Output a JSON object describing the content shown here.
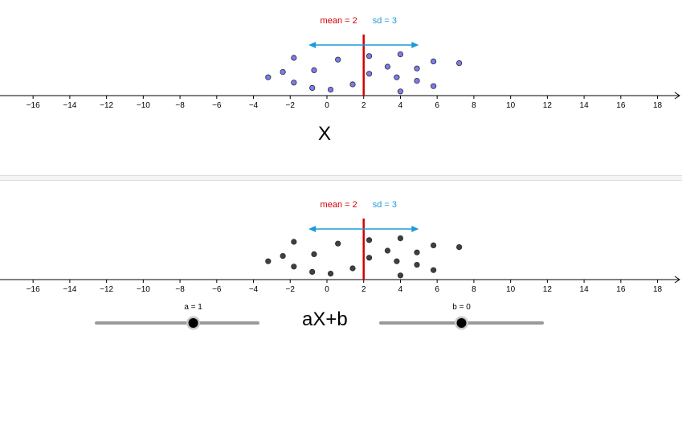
{
  "colors": {
    "mean": "#d40000",
    "sd": "#1c9bd6",
    "top_points": "#7b7bf2",
    "bottom_points": "#404040",
    "axis": "#000000",
    "slider_track": "#9a9a9a"
  },
  "axis": {
    "xlim": [
      -17.8,
      19.2
    ],
    "tick_labels": [
      "−16",
      "−14",
      "−12",
      "−10",
      "−8",
      "−6",
      "−4",
      "−2",
      "0",
      "2",
      "4",
      "6",
      "8",
      "10",
      "12",
      "14",
      "16",
      "18"
    ],
    "tick_values": [
      -16,
      -14,
      -12,
      -10,
      -8,
      -6,
      -4,
      -2,
      0,
      2,
      4,
      6,
      8,
      10,
      12,
      14,
      16,
      18
    ]
  },
  "top_panel": {
    "title": "X",
    "mean_label": "mean = 2",
    "sd_label": "sd = 3",
    "mean": 2,
    "sd": 3,
    "points": [
      {
        "x": -3.2,
        "y": 0.9
      },
      {
        "x": -2.4,
        "y": 1.2
      },
      {
        "x": -1.8,
        "y": 2.0
      },
      {
        "x": -1.8,
        "y": 0.6
      },
      {
        "x": -0.7,
        "y": 1.3
      },
      {
        "x": -0.8,
        "y": 0.3
      },
      {
        "x": 0.2,
        "y": 0.2
      },
      {
        "x": 0.6,
        "y": 1.9
      },
      {
        "x": 1.4,
        "y": 0.5
      },
      {
        "x": 2.3,
        "y": 2.1
      },
      {
        "x": 2.3,
        "y": 1.1
      },
      {
        "x": 3.3,
        "y": 1.5
      },
      {
        "x": 3.8,
        "y": 0.9
      },
      {
        "x": 4.0,
        "y": 2.2
      },
      {
        "x": 4.0,
        "y": 0.1
      },
      {
        "x": 4.9,
        "y": 1.4
      },
      {
        "x": 4.9,
        "y": 0.7
      },
      {
        "x": 5.8,
        "y": 1.8
      },
      {
        "x": 5.8,
        "y": 0.4
      },
      {
        "x": 7.2,
        "y": 1.7
      }
    ]
  },
  "bottom_panel": {
    "title": "aX+b",
    "mean_label": "mean = 2",
    "sd_label": "sd = 3",
    "mean": 2,
    "sd": 3,
    "points": [
      {
        "x": -3.2,
        "y": 0.9
      },
      {
        "x": -2.4,
        "y": 1.2
      },
      {
        "x": -1.8,
        "y": 2.0
      },
      {
        "x": -1.8,
        "y": 0.6
      },
      {
        "x": -0.7,
        "y": 1.3
      },
      {
        "x": -0.8,
        "y": 0.3
      },
      {
        "x": 0.2,
        "y": 0.2
      },
      {
        "x": 0.6,
        "y": 1.9
      },
      {
        "x": 1.4,
        "y": 0.5
      },
      {
        "x": 2.3,
        "y": 2.1
      },
      {
        "x": 2.3,
        "y": 1.1
      },
      {
        "x": 3.3,
        "y": 1.5
      },
      {
        "x": 3.8,
        "y": 0.9
      },
      {
        "x": 4.0,
        "y": 2.2
      },
      {
        "x": 4.0,
        "y": 0.1
      },
      {
        "x": 4.9,
        "y": 1.4
      },
      {
        "x": 4.9,
        "y": 0.7
      },
      {
        "x": 5.8,
        "y": 1.8
      },
      {
        "x": 5.8,
        "y": 0.4
      },
      {
        "x": 7.2,
        "y": 1.7
      }
    ]
  },
  "sliders": {
    "a": {
      "label": "a = 1",
      "min": -5,
      "max": 5,
      "value": 1
    },
    "b": {
      "label": "b = 0",
      "min": -10,
      "max": 10,
      "value": 0
    }
  }
}
